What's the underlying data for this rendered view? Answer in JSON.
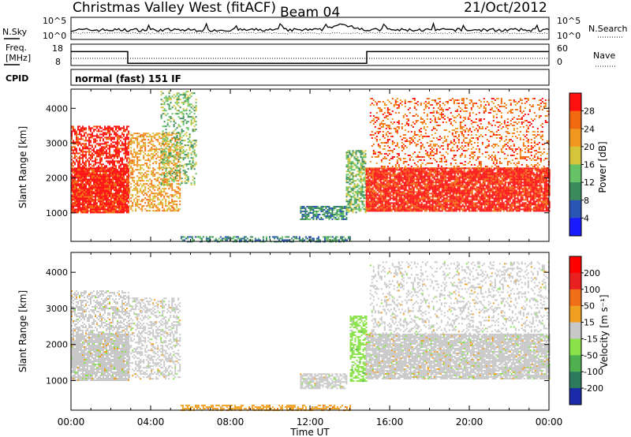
{
  "header": {
    "station": "Christmas Valley West (fitACF)",
    "beam": "Beam 04",
    "date": "21/Oct/2012"
  },
  "noise_panel": {
    "left_label": "N.Sky",
    "right_label": "N.Search",
    "left_ticks": [
      "10^5",
      "10^0"
    ],
    "right_ticks": [
      "10^5",
      "10^0"
    ]
  },
  "freq_panel": {
    "left_label_1": "Freq.",
    "left_label_2": "[MHz]",
    "right_label": "Nave",
    "left_ticks": [
      "18",
      "8"
    ],
    "right_ticks": [
      "60",
      "0"
    ],
    "freq_series": {
      "x": [
        0,
        2.85,
        2.85,
        14.85,
        14.85,
        24
      ],
      "values": [
        16,
        16,
        10.5,
        10.5,
        16,
        16
      ]
    },
    "nave_series": {
      "x": [
        0,
        24
      ],
      "values": [
        20,
        20
      ]
    }
  },
  "cpid": {
    "label": "CPID",
    "text": "normal (fast) 151 IF"
  },
  "chart_data": [
    {
      "type": "heatmap",
      "title": "",
      "ylabel": "Slant Range [km]",
      "xlabel": "",
      "x_ticks": [
        "00:00",
        "04:00",
        "08:00",
        "12:00",
        "16:00",
        "20:00",
        "00:00"
      ],
      "y_ticks": [
        "1000",
        "2000",
        "3000",
        "4000"
      ],
      "ylim": [
        180,
        4550
      ],
      "xlim": [
        0,
        24
      ],
      "colorbar": {
        "label": "Power [dB]",
        "ticks": [
          "4",
          "8",
          "12",
          "16",
          "20",
          "24",
          "28"
        ],
        "colors": [
          "#1a1aff",
          "#2a55b4",
          "#3b8a5c",
          "#66c266",
          "#d6c53a",
          "#f09820",
          "#f26a10",
          "#ff1010"
        ]
      },
      "regions": [
        {
          "x": [
            0,
            2.9
          ],
          "y": [
            1000,
            2300
          ],
          "level": 7,
          "density": 0.95
        },
        {
          "x": [
            0,
            2.9
          ],
          "y": [
            2300,
            3500
          ],
          "level": 7,
          "density": 0.6
        },
        {
          "x": [
            2.9,
            5.5
          ],
          "y": [
            1050,
            3300
          ],
          "level": 5,
          "density": 0.5
        },
        {
          "x": [
            4.5,
            6.3
          ],
          "y": [
            1800,
            4500
          ],
          "level": 3,
          "density": 0.35
        },
        {
          "x": [
            5.5,
            14
          ],
          "y": [
            190,
            330
          ],
          "level": 2,
          "density": 0.55
        },
        {
          "x": [
            11.5,
            13.8
          ],
          "y": [
            800,
            1200
          ],
          "level": 2,
          "density": 0.75
        },
        {
          "x": [
            13.8,
            14.8
          ],
          "y": [
            1000,
            2800
          ],
          "level": 3,
          "density": 0.6
        },
        {
          "x": [
            14.8,
            24
          ],
          "y": [
            1050,
            2300
          ],
          "level": 7,
          "density": 0.9
        },
        {
          "x": [
            15,
            24
          ],
          "y": [
            2300,
            4300
          ],
          "level": 6,
          "density": 0.25
        }
      ]
    },
    {
      "type": "heatmap",
      "title": "",
      "ylabel": "Slant Range [km]",
      "xlabel": "Time UT",
      "x_ticks": [
        "00:00",
        "04:00",
        "08:00",
        "12:00",
        "16:00",
        "20:00",
        "00:00"
      ],
      "y_ticks": [
        "1000",
        "2000",
        "3000",
        "4000"
      ],
      "ylim": [
        180,
        4550
      ],
      "xlim": [
        0,
        24
      ],
      "colorbar": {
        "label": "Velocity [m s⁻¹]",
        "ticks": [
          "200",
          "100",
          "50",
          "15",
          "-15",
          "-50",
          "-100",
          "-200"
        ],
        "colors": [
          "#1a2aa8",
          "#2e7a5e",
          "#4fb04f",
          "#8ae24a",
          "#c8c8c8",
          "#f0a020",
          "#f06e18",
          "#e82020",
          "#ff0000"
        ]
      },
      "regions": [
        {
          "x": [
            0,
            2.9
          ],
          "y": [
            1000,
            2300
          ],
          "level": 4,
          "density": 0.9
        },
        {
          "x": [
            0,
            2.9
          ],
          "y": [
            2300,
            3500
          ],
          "level": 4,
          "density": 0.5
        },
        {
          "x": [
            2.9,
            5.5
          ],
          "y": [
            1050,
            3300
          ],
          "level": 4,
          "density": 0.45
        },
        {
          "x": [
            5.5,
            14
          ],
          "y": [
            190,
            330
          ],
          "level": 5,
          "density": 0.55
        },
        {
          "x": [
            11.5,
            13.8
          ],
          "y": [
            800,
            1200
          ],
          "level": 4,
          "density": 0.7
        },
        {
          "x": [
            14,
            14.8
          ],
          "y": [
            1000,
            2800
          ],
          "level": 3,
          "density": 0.6
        },
        {
          "x": [
            14.8,
            24
          ],
          "y": [
            1050,
            2300
          ],
          "level": 4,
          "density": 0.85
        },
        {
          "x": [
            15,
            24
          ],
          "y": [
            2300,
            4300
          ],
          "level": 4,
          "density": 0.25
        }
      ]
    }
  ]
}
